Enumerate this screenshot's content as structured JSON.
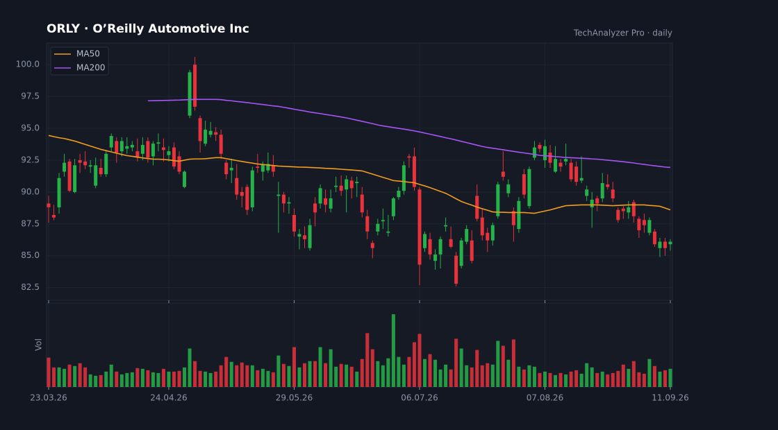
{
  "chart_data": {
    "type": "candlestick",
    "title": "ORLY  ·  O’Reilly Automotive Inc",
    "subtitle": "TechAnalyzer Pro · daily",
    "volume_label": "Vol",
    "up_color": "#26b24a",
    "down_color": "#e8323c",
    "grid": true,
    "legend": "upper left",
    "categories": [
      "23.03.26",
      null,
      null,
      null,
      null,
      null,
      null,
      null,
      null,
      null,
      null,
      null,
      null,
      null,
      null,
      null,
      null,
      null,
      null,
      null,
      null,
      null,
      null,
      "24.04.26",
      null,
      null,
      null,
      null,
      null,
      null,
      null,
      null,
      null,
      null,
      null,
      null,
      null,
      null,
      null,
      null,
      null,
      null,
      null,
      null,
      null,
      null,
      null,
      "29.05.26",
      null,
      null,
      null,
      null,
      null,
      null,
      null,
      null,
      null,
      null,
      null,
      null,
      null,
      null,
      null,
      null,
      null,
      null,
      null,
      null,
      null,
      null,
      null,
      "06.07.26",
      null,
      null,
      null,
      null,
      null,
      null,
      null,
      null,
      null,
      null,
      null,
      null,
      null,
      null,
      null,
      null,
      null,
      null,
      null,
      null,
      null,
      null,
      null,
      "07.08.26",
      null,
      null,
      null,
      null,
      null,
      null,
      null,
      null,
      null,
      null,
      null,
      null,
      null,
      null,
      null,
      null,
      null,
      null,
      null,
      null,
      null,
      null,
      null,
      "11.09.26"
    ],
    "open": [
      89.1,
      88.2,
      88.8,
      91.6,
      92.4,
      90.0,
      92.5,
      92.4,
      92.0,
      90.5,
      91.9,
      91.4,
      93.5,
      94.0,
      93.2,
      93.4,
      93.5,
      93.2,
      93.0,
      94.0,
      92.8,
      93.8,
      93.5,
      92.9,
      93.5,
      92.8,
      90.4,
      96.0,
      100.0,
      95.8,
      93.8,
      94.5,
      94.7,
      94.5,
      92.3,
      91.7,
      91.1,
      90.0,
      90.4,
      88.8,
      92.0,
      91.6,
      91.7,
      92.1,
      89.7,
      89.8,
      89.1,
      88.2,
      86.5,
      86.6,
      85.6,
      89.1,
      89.1,
      89.5,
      88.7,
      90.4,
      90.5,
      90.2,
      90.9,
      90.7,
      89.8,
      88.1,
      86.0,
      86.9,
      87.7,
      86.8,
      88.1,
      89.6,
      90.1,
      92.8,
      92.8,
      90.2,
      85.6,
      86.3,
      84.6,
      85.1,
      87.3,
      86.3,
      85.0,
      84.2,
      86.1,
      86.2,
      89.7,
      88.0,
      86.8,
      86.2,
      88.1,
      91.6,
      89.9,
      88.5,
      87.1,
      91.4,
      88.9,
      92.7,
      93.7,
      92.5,
      93.1,
      91.6,
      92.3,
      92.4,
      92.3,
      92.0,
      90.9,
      89.7,
      88.8,
      89.5,
      89.5,
      90.6,
      90.2,
      88.6,
      88.7,
      88.4,
      89.2,
      87.9,
      87.8,
      86.8,
      86.9,
      85.6,
      86.1,
      85.9
    ],
    "high": [
      89.7,
      89.0,
      91.5,
      93.0,
      92.6,
      92.6,
      93.0,
      93.2,
      92.5,
      92.7,
      92.6,
      93.2,
      94.6,
      94.3,
      94.3,
      94.3,
      94.0,
      94.2,
      94.3,
      94.3,
      94.0,
      94.6,
      94.2,
      93.6,
      93.9,
      93.2,
      91.7,
      99.6,
      100.6,
      96.0,
      95.6,
      95.5,
      95.1,
      94.9,
      92.5,
      92.6,
      92.2,
      90.4,
      90.6,
      92.0,
      93.0,
      92.4,
      93.1,
      92.9,
      90.8,
      90.0,
      89.6,
      88.7,
      87.1,
      87.3,
      87.9,
      89.6,
      90.6,
      90.2,
      90.2,
      91.2,
      91.3,
      91.3,
      91.2,
      91.2,
      90.4,
      88.6,
      86.2,
      87.9,
      88.7,
      88.2,
      89.6,
      90.4,
      92.4,
      93.0,
      93.5,
      90.4,
      86.9,
      86.8,
      85.5,
      86.5,
      88.0,
      87.3,
      85.3,
      86.4,
      87.4,
      87.0,
      90.6,
      88.7,
      87.2,
      87.6,
      90.8,
      93.2,
      91.0,
      88.8,
      89.6,
      91.8,
      92.0,
      94.0,
      93.9,
      94.1,
      93.7,
      93.6,
      92.6,
      93.8,
      92.6,
      92.4,
      92.8,
      90.5,
      90.0,
      89.7,
      91.5,
      91.4,
      90.8,
      88.8,
      88.9,
      89.3,
      89.4,
      88.1,
      88.3,
      88.0,
      87.1,
      86.4,
      86.4,
      86.3
    ],
    "low": [
      87.6,
      87.8,
      88.3,
      91.2,
      90.0,
      89.9,
      91.5,
      91.8,
      91.5,
      90.3,
      91.2,
      91.2,
      93.2,
      92.3,
      92.8,
      93.0,
      93.2,
      92.4,
      92.5,
      92.3,
      92.1,
      93.2,
      92.4,
      92.4,
      91.8,
      91.4,
      90.3,
      95.8,
      96.4,
      93.1,
      93.6,
      94.3,
      94.0,
      92.6,
      91.0,
      90.7,
      89.4,
      88.8,
      88.2,
      88.5,
      91.5,
      90.9,
      91.5,
      91.2,
      86.8,
      88.4,
      88.3,
      86.5,
      85.5,
      85.6,
      85.4,
      87.3,
      88.7,
      88.4,
      88.4,
      90.0,
      89.7,
      88.4,
      89.5,
      89.6,
      88.0,
      86.3,
      84.8,
      86.6,
      87.1,
      86.5,
      87.8,
      89.4,
      89.8,
      91.9,
      90.1,
      82.7,
      85.3,
      84.7,
      83.9,
      84.0,
      86.9,
      85.6,
      82.6,
      84.0,
      85.9,
      84.4,
      87.7,
      86.2,
      85.3,
      85.8,
      87.9,
      90.9,
      89.6,
      86.1,
      86.8,
      89.5,
      88.7,
      92.5,
      93.1,
      91.9,
      91.9,
      91.5,
      91.6,
      92.1,
      90.8,
      90.5,
      90.7,
      89.3,
      87.2,
      88.5,
      89.2,
      90.2,
      89.2,
      87.6,
      87.9,
      87.9,
      87.6,
      86.4,
      86.8,
      86.6,
      85.7,
      84.9,
      85.0,
      85.4
    ],
    "close": [
      88.8,
      88.0,
      91.1,
      92.3,
      90.1,
      92.1,
      92.3,
      92.1,
      92.1,
      92.1,
      91.4,
      93.0,
      94.4,
      93.1,
      94.0,
      93.6,
      93.7,
      92.7,
      93.7,
      92.7,
      93.8,
      93.9,
      93.3,
      93.2,
      92.0,
      91.6,
      91.6,
      99.4,
      96.7,
      94.0,
      94.9,
      94.8,
      94.5,
      93.0,
      91.4,
      91.9,
      89.8,
      89.7,
      88.6,
      91.7,
      91.9,
      92.2,
      92.2,
      91.6,
      89.8,
      89.1,
      89.2,
      86.9,
      86.7,
      86.3,
      87.4,
      88.4,
      90.3,
      89.0,
      89.5,
      90.5,
      90.1,
      91.0,
      90.3,
      90.8,
      88.4,
      86.9,
      85.6,
      87.5,
      87.8,
      86.9,
      89.5,
      90.1,
      92.1,
      92.7,
      90.4,
      84.3,
      86.7,
      85.1,
      85.1,
      86.3,
      87.4,
      85.7,
      82.8,
      86.2,
      87.1,
      84.6,
      87.9,
      86.6,
      86.2,
      87.4,
      90.6,
      91.2,
      90.6,
      87.4,
      89.3,
      89.8,
      91.8,
      93.5,
      93.4,
      93.6,
      92.3,
      92.6,
      92.0,
      92.6,
      91.0,
      90.8,
      91.1,
      90.2,
      89.4,
      89.1,
      90.7,
      90.4,
      89.5,
      87.8,
      88.5,
      88.8,
      88.1,
      87.0,
      87.4,
      87.8,
      85.9,
      86.1,
      85.6,
      86.1
    ],
    "volume": [
      42,
      28,
      28,
      26,
      32,
      30,
      34,
      28,
      18,
      16,
      17,
      22,
      32,
      22,
      18,
      20,
      21,
      27,
      26,
      24,
      21,
      20,
      26,
      22,
      22,
      23,
      28,
      55,
      37,
      23,
      22,
      20,
      22,
      31,
      43,
      36,
      31,
      35,
      31,
      31,
      24,
      26,
      23,
      21,
      45,
      33,
      30,
      57,
      28,
      34,
      37,
      37,
      57,
      34,
      54,
      29,
      33,
      32,
      29,
      22,
      40,
      77,
      54,
      37,
      31,
      41,
      104,
      43,
      32,
      43,
      64,
      76,
      40,
      47,
      39,
      25,
      32,
      25,
      69,
      55,
      31,
      28,
      53,
      31,
      34,
      32,
      66,
      59,
      39,
      68,
      29,
      25,
      31,
      29,
      20,
      22,
      20,
      17,
      20,
      18,
      22,
      24,
      19,
      34,
      28,
      20,
      22,
      18,
      20,
      23,
      32,
      26,
      37,
      21,
      19,
      40,
      30,
      22,
      24,
      26
    ],
    "series": [
      {
        "name": "MA50",
        "color": "#f29d1c",
        "values": [
          94.44,
          94.35,
          94.26,
          94.2,
          94.1,
          94.0,
          93.87,
          93.74,
          93.61,
          93.48,
          93.35,
          93.25,
          93.15,
          93.05,
          92.95,
          92.86,
          92.8,
          92.74,
          92.68,
          92.63,
          92.58,
          92.58,
          92.56,
          92.52,
          92.46,
          92.42,
          92.5,
          92.58,
          92.6,
          92.6,
          92.62,
          92.66,
          92.7,
          92.7,
          92.62,
          92.55,
          92.47,
          92.4,
          92.33,
          92.27,
          92.2,
          92.16,
          92.12,
          92.08,
          92.04,
          92.02,
          92.0,
          91.98,
          91.96,
          91.95,
          91.93,
          91.91,
          91.89,
          91.86,
          91.84,
          91.82,
          91.79,
          91.76,
          91.73,
          91.7,
          91.66,
          91.53,
          91.41,
          91.28,
          91.15,
          91.03,
          90.9,
          90.86,
          90.82,
          90.77,
          90.73,
          90.6,
          90.48,
          90.35,
          90.2,
          90.05,
          89.9,
          89.69,
          89.47,
          89.26,
          89.11,
          88.97,
          88.82,
          88.69,
          88.57,
          88.44,
          88.42,
          88.41,
          88.39,
          88.39,
          88.39,
          88.39,
          88.36,
          88.33,
          88.42,
          88.51,
          88.6,
          88.71,
          88.82,
          88.93,
          88.95,
          88.97,
          88.99,
          88.99,
          88.99,
          88.99,
          88.97,
          88.95,
          88.93,
          88.95,
          88.97,
          88.99,
          88.99,
          88.99,
          88.99,
          88.95,
          88.92,
          88.88,
          88.74,
          88.6
        ]
      },
      {
        "name": "MA200",
        "color": "#a855f7",
        "values": [
          null,
          null,
          null,
          null,
          null,
          null,
          null,
          null,
          null,
          null,
          null,
          null,
          null,
          null,
          null,
          null,
          null,
          null,
          null,
          97.16,
          97.17,
          97.18,
          97.19,
          97.2,
          97.21,
          97.22,
          97.24,
          97.25,
          97.27,
          97.27,
          97.27,
          97.27,
          97.27,
          97.25,
          97.2,
          97.16,
          97.11,
          97.07,
          97.02,
          96.97,
          96.92,
          96.87,
          96.82,
          96.76,
          96.72,
          96.65,
          96.58,
          96.5,
          96.43,
          96.36,
          96.28,
          96.22,
          96.16,
          96.09,
          96.03,
          95.96,
          95.89,
          95.82,
          95.73,
          95.64,
          95.55,
          95.46,
          95.37,
          95.27,
          95.19,
          95.13,
          95.06,
          95.0,
          94.94,
          94.87,
          94.8,
          94.72,
          94.63,
          94.54,
          94.45,
          94.36,
          94.26,
          94.18,
          94.08,
          93.98,
          93.88,
          93.78,
          93.68,
          93.58,
          93.5,
          93.44,
          93.38,
          93.32,
          93.25,
          93.19,
          93.13,
          93.07,
          93.01,
          92.95,
          92.88,
          92.85,
          92.82,
          92.78,
          92.75,
          92.71,
          92.69,
          92.67,
          92.65,
          92.63,
          92.6,
          92.58,
          92.54,
          92.5,
          92.46,
          92.42,
          92.38,
          92.33,
          92.28,
          92.22,
          92.17,
          92.11,
          92.06,
          92.01,
          91.96,
          91.93
        ]
      }
    ],
    "ylim": [
      81.5,
      101.7
    ],
    "yticks": [
      {
        "value": 82.5,
        "label": "82.5"
      },
      {
        "value": 85,
        "label": "85.0"
      },
      {
        "value": 87.5,
        "label": "87.5"
      },
      {
        "value": 90,
        "label": "90.0"
      },
      {
        "value": 92.5,
        "label": "92.5"
      },
      {
        "value": 95,
        "label": "95.0"
      },
      {
        "value": 97.5,
        "label": "97.5"
      },
      {
        "value": 100,
        "label": "100.0"
      }
    ],
    "volume_ylim": [
      0,
      120
    ]
  }
}
